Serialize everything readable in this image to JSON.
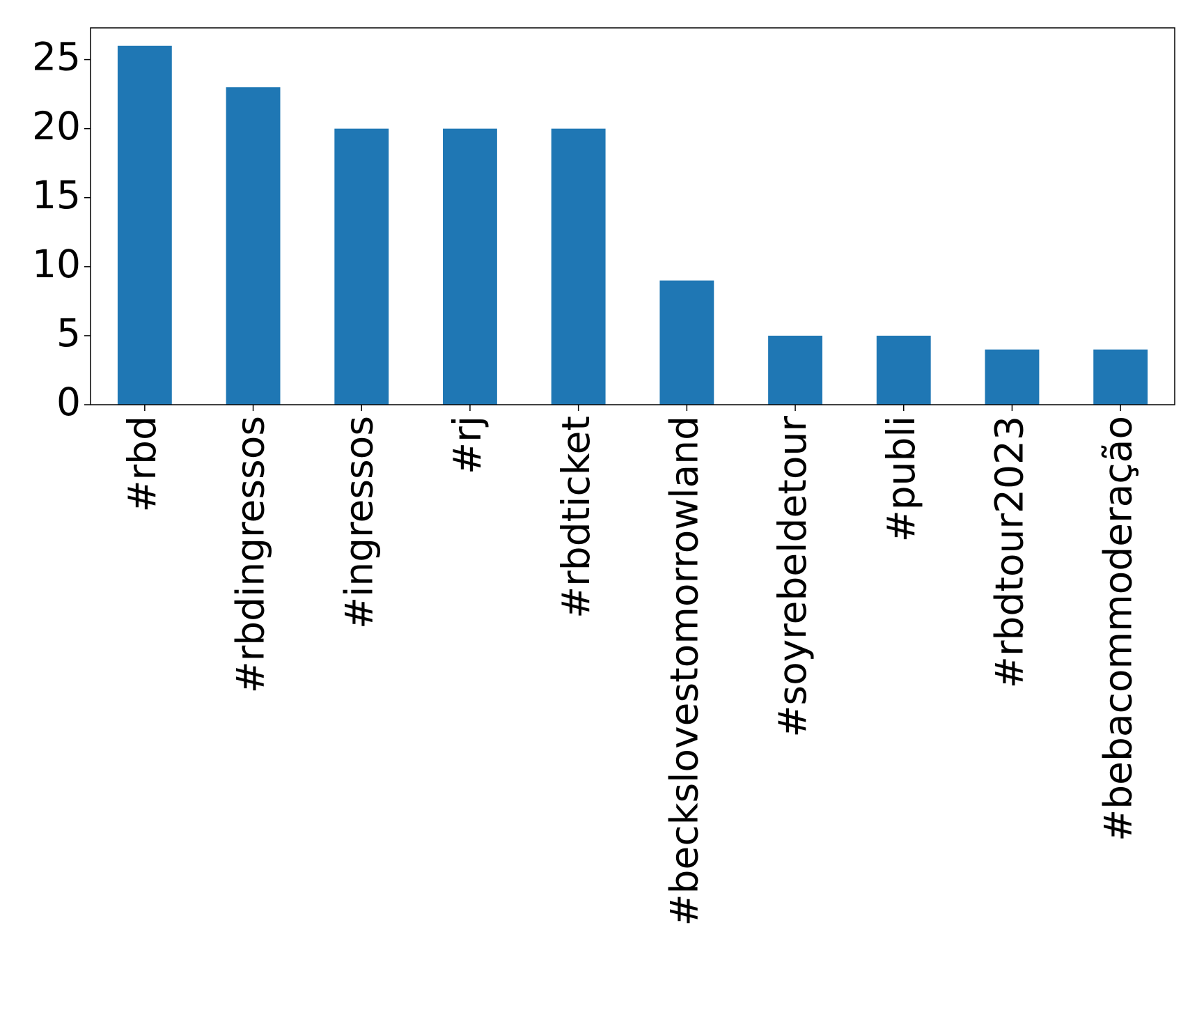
{
  "chart_data": {
    "type": "bar",
    "categories": [
      "#rbd",
      "#rbdingressos",
      "#ingressos",
      "#rj",
      "#rbdticket",
      "#beckslovestomorrowland",
      "#soyrebeldetour",
      "#publi",
      "#rbdtour2023",
      "#bebacommoderação"
    ],
    "values": [
      26,
      23,
      20,
      20,
      20,
      9,
      5,
      5,
      4,
      4
    ],
    "color": "#1f77b4",
    "ylim": [
      0,
      27.3
    ],
    "yticks": [
      0,
      5,
      10,
      15,
      20,
      25
    ],
    "grid": false
  }
}
